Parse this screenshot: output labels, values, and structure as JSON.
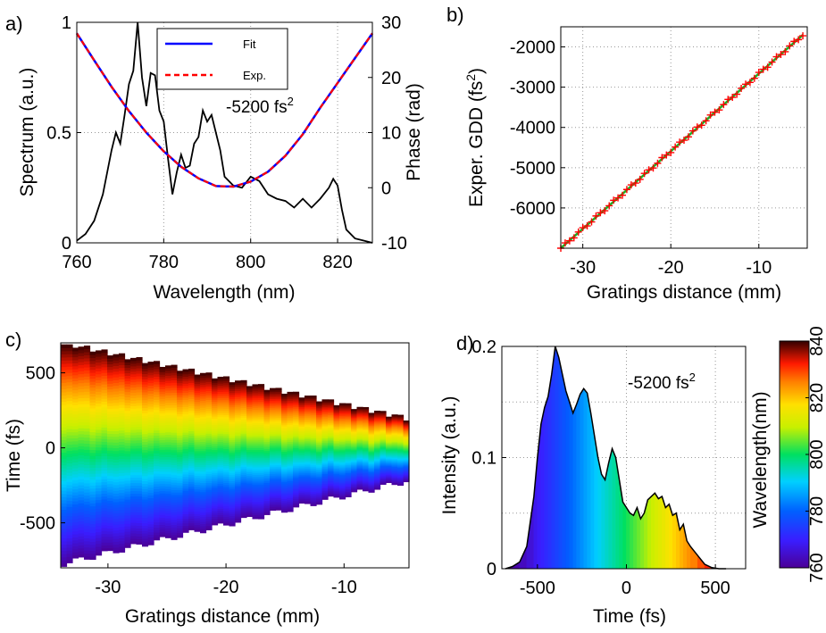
{
  "colors": {
    "fit": "#0000ff",
    "exp": "#ff0000",
    "spectrum": "#000000",
    "gdd_line": "#22aa22",
    "gdd_marker": "#ff0000",
    "grid": "#999999"
  },
  "chart_data": [
    {
      "type": "line",
      "panel_label": "a)",
      "xlabel": "Wavelength (nm)",
      "ylabel": "Spectrum (a.u.)",
      "ylabel_right": "Phase (rad)",
      "annotation": "-5200 fs",
      "annotation_sup": "2",
      "xlim": [
        760,
        828
      ],
      "ylim": [
        0,
        1
      ],
      "ylim_right": [
        -10,
        30
      ],
      "xticks": [
        "760",
        "780",
        "800",
        "820"
      ],
      "yticks": [
        "0",
        "0.5",
        "1"
      ],
      "yticks_right": [
        "-10",
        "0",
        "10",
        "20",
        "30"
      ],
      "legend_position": "top-center",
      "grid": true,
      "series": [
        {
          "name": "Fit",
          "axis": "right",
          "style": "solid",
          "x": [
            760,
            764,
            768,
            772,
            776,
            780,
            784,
            788,
            792,
            796,
            800,
            804,
            808,
            812,
            816,
            820,
            824,
            828
          ],
          "y": [
            28,
            23.1,
            18.3,
            13.9,
            10,
            6.6,
            3.8,
            1.7,
            0.3,
            0.2,
            1.1,
            2.9,
            5.8,
            9.7,
            14.5,
            19,
            23.5,
            28
          ]
        },
        {
          "name": "Exp.",
          "axis": "right",
          "style": "dashed",
          "x": [
            760,
            764,
            768,
            772,
            776,
            780,
            784,
            788,
            792,
            796,
            800,
            804,
            808,
            812,
            816,
            820,
            824,
            828
          ],
          "y": [
            28,
            23.1,
            18.3,
            13.9,
            10,
            6.6,
            3.8,
            1.7,
            0.3,
            0.2,
            1.1,
            2.9,
            5.8,
            9.7,
            14.5,
            19,
            23.5,
            28
          ]
        },
        {
          "name": "Spectrum",
          "axis": "left",
          "style": "solid",
          "x": [
            760,
            762,
            764,
            766,
            768,
            769,
            770,
            771,
            772,
            773,
            774,
            775,
            776,
            777,
            778,
            779,
            780,
            781,
            782,
            783,
            784,
            785,
            786,
            787,
            788,
            789,
            790,
            791,
            792,
            793,
            794,
            796,
            798,
            800,
            802,
            804,
            806,
            808,
            810,
            812,
            814,
            816,
            818,
            819,
            820,
            821,
            822,
            824,
            826,
            828
          ],
          "y": [
            0.01,
            0.04,
            0.1,
            0.22,
            0.42,
            0.5,
            0.45,
            0.58,
            0.72,
            0.78,
            1.0,
            0.75,
            0.62,
            0.77,
            0.76,
            0.6,
            0.55,
            0.38,
            0.22,
            0.32,
            0.4,
            0.34,
            0.35,
            0.45,
            0.48,
            0.6,
            0.55,
            0.58,
            0.5,
            0.42,
            0.3,
            0.26,
            0.25,
            0.3,
            0.28,
            0.22,
            0.2,
            0.19,
            0.16,
            0.2,
            0.16,
            0.2,
            0.25,
            0.29,
            0.26,
            0.15,
            0.06,
            0.02,
            0.01,
            0.0
          ]
        }
      ]
    },
    {
      "type": "line",
      "panel_label": "b)",
      "xlabel": "Gratings distance (mm)",
      "ylabel": "Exper. GDD (fs",
      "ylabel_sup": "2",
      "ylabel_end": ")",
      "xlim": [
        -32.5,
        -4.5
      ],
      "ylim": [
        -7000,
        -1500
      ],
      "xticks": [
        "-30",
        "-20",
        "-10"
      ],
      "xtick_values": [
        -30,
        -20,
        -10
      ],
      "yticks": [
        "-2000",
        "-3000",
        "-4000",
        "-5000",
        "-6000"
      ],
      "ytick_values": [
        -2000,
        -3000,
        -4000,
        -5000,
        -6000
      ],
      "grid": true,
      "series": [
        {
          "name": "",
          "markers": "plus",
          "x": [
            -32.5,
            -5
          ],
          "y": [
            -7000,
            -1700
          ]
        }
      ]
    },
    {
      "type": "heatmap",
      "panel_label": "c)",
      "xlabel": "Gratings distance (mm)",
      "ylabel": "Time (fs)",
      "xlim": [
        -34,
        -4.5
      ],
      "ylim": [
        -800,
        700
      ],
      "xticks": [
        "-30",
        "-20",
        "-10"
      ],
      "xtick_values": [
        -30,
        -20,
        -10
      ],
      "yticks": [
        "500",
        "0",
        "-500"
      ],
      "ytick_values": [
        500,
        0,
        -500
      ],
      "wavelength_range_nm": [
        760,
        840
      ],
      "chirp_fs_per_nm_at": {
        "x": [
          -34,
          -4.5
        ],
        "half_width_fs": [
          700,
          200
        ]
      }
    },
    {
      "type": "area",
      "panel_label": "d)",
      "xlabel": "Time (fs)",
      "ylabel": "Intensity (a.u.)",
      "annotation": "-5200 fs",
      "annotation_sup": "2",
      "xlim": [
        -700,
        670
      ],
      "ylim": [
        0,
        0.2
      ],
      "xticks": [
        "-500",
        "0",
        "500"
      ],
      "xtick_values": [
        -500,
        0,
        500
      ],
      "yticks": [
        "0",
        "0.1",
        "0.2"
      ],
      "ytick_values": [
        0,
        0.1,
        0.2
      ],
      "grid": true,
      "x": [
        -680,
        -640,
        -600,
        -560,
        -520,
        -500,
        -480,
        -460,
        -440,
        -420,
        -400,
        -380,
        -360,
        -340,
        -320,
        -300,
        -280,
        -260,
        -240,
        -220,
        -200,
        -180,
        -160,
        -140,
        -120,
        -100,
        -80,
        -60,
        -40,
        -20,
        0,
        20,
        40,
        60,
        80,
        100,
        120,
        140,
        160,
        180,
        200,
        220,
        240,
        260,
        280,
        300,
        320,
        340,
        360,
        400,
        440,
        480,
        520,
        560
      ],
      "y": [
        0.0,
        0.002,
        0.006,
        0.02,
        0.065,
        0.1,
        0.13,
        0.145,
        0.155,
        0.175,
        0.2,
        0.19,
        0.175,
        0.16,
        0.15,
        0.14,
        0.148,
        0.157,
        0.162,
        0.158,
        0.14,
        0.12,
        0.1,
        0.085,
        0.08,
        0.095,
        0.108,
        0.1,
        0.08,
        0.06,
        0.055,
        0.05,
        0.048,
        0.055,
        0.045,
        0.05,
        0.062,
        0.065,
        0.068,
        0.063,
        0.065,
        0.055,
        0.058,
        0.048,
        0.05,
        0.035,
        0.04,
        0.025,
        0.02,
        0.012,
        0.004,
        0.001,
        0.0,
        0.0
      ],
      "color_wavelength_range_nm": [
        760,
        840
      ],
      "colorbar": {
        "label": "Wavelength(nm)",
        "ticks": [
          "760",
          "780",
          "800",
          "820",
          "840"
        ],
        "tick_values": [
          760,
          780,
          800,
          820,
          840
        ]
      }
    }
  ]
}
